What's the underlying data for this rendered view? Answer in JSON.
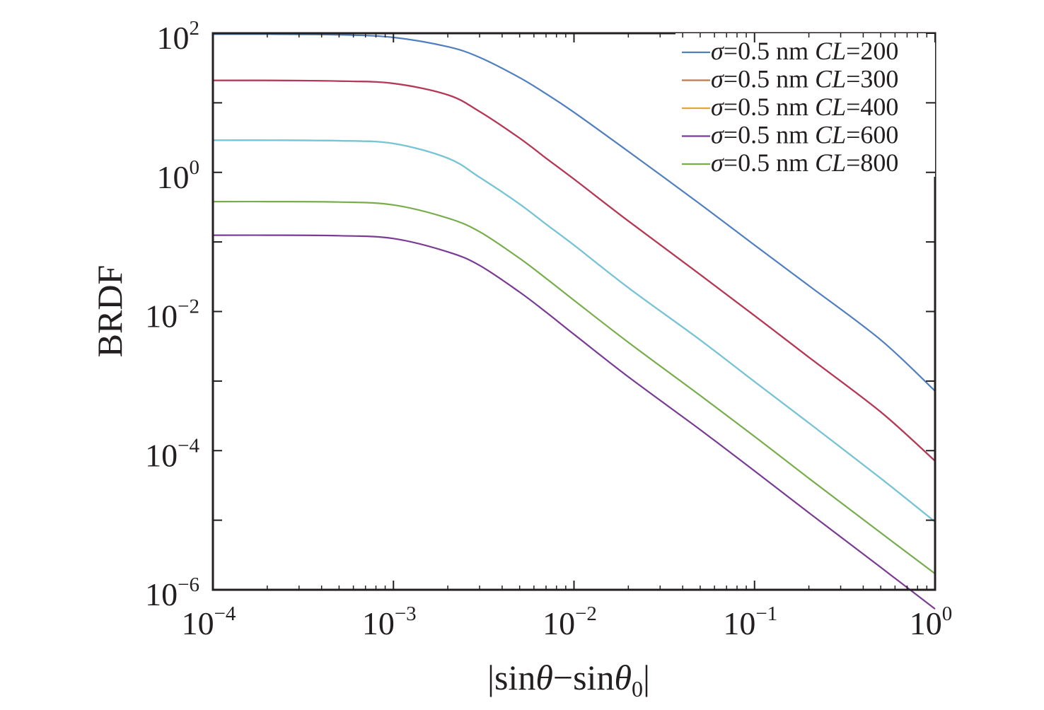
{
  "chart_data": {
    "type": "line",
    "xscale": "log",
    "yscale": "log",
    "xlim": [
      0.0001,
      1
    ],
    "ylim": [
      1e-06,
      100
    ],
    "xlabel": {
      "prefix": "|sin",
      "theta": "θ",
      "mid": "−sin",
      "theta0": "θ",
      "sub": "0",
      "suffix": "|"
    },
    "ylabel": "BRDF",
    "xticks": [
      {
        "value": 0.0001,
        "base": "10",
        "exp": "−4"
      },
      {
        "value": 0.001,
        "base": "10",
        "exp": "−3"
      },
      {
        "value": 0.01,
        "base": "10",
        "exp": "−2"
      },
      {
        "value": 0.1,
        "base": "10",
        "exp": "−1"
      },
      {
        "value": 1,
        "base": "10",
        "exp": "0"
      }
    ],
    "yticks": [
      {
        "value": 100,
        "base": "10",
        "exp": "2"
      },
      {
        "value": 1,
        "base": "10",
        "exp": "0"
      },
      {
        "value": 0.01,
        "base": "10",
        "exp": "−2"
      },
      {
        "value": 0.0001,
        "base": "10",
        "exp": "−4"
      },
      {
        "value": 1e-06,
        "base": "10",
        "exp": "−6"
      }
    ],
    "grid": false,
    "legend_position": "top-right",
    "x": [
      0.0001,
      0.0002,
      0.0005,
      0.001,
      0.002,
      0.003,
      0.005,
      0.007,
      0.01,
      0.02,
      0.05,
      0.1,
      0.2,
      0.5,
      1
    ],
    "series": [
      {
        "name": "σ=0.5 nm CL=200",
        "sigma": "σ",
        "mid": "=0.5 nm ",
        "cl": "CL",
        "val": "=200",
        "color": "#4f7fbf",
        "values": [
          97,
          97,
          95,
          87,
          64,
          45,
          23,
          13.5,
          7.3,
          2.0,
          0.35,
          0.09,
          0.0235,
          0.0039,
          0.00072
        ]
      },
      {
        "name": "σ=0.5 nm CL=300",
        "sigma": "σ",
        "mid": "=0.5 nm ",
        "cl": "CL",
        "val": "=300",
        "color": "#c0784f",
        "values": [
          21,
          21,
          20.5,
          19,
          13,
          7.5,
          3.1,
          1.6,
          0.8,
          0.2,
          0.034,
          0.0087,
          0.0022,
          0.00036,
          7.1e-05
        ]
      },
      {
        "name": "σ=0.5 nm CL=400",
        "sigma": "σ",
        "mid": "=0.5 nm ",
        "cl": "CL",
        "val": "=400",
        "color": "#e0a83a",
        "values": [
          2.9,
          2.9,
          2.85,
          2.6,
          1.6,
          0.85,
          0.35,
          0.18,
          0.09,
          0.022,
          0.0039,
          0.00098,
          0.00025,
          4e-05,
          9.5e-06
        ]
      },
      {
        "name": "σ=0.5 nm CL=600",
        "sigma": "σ",
        "mid": "=0.5 nm ",
        "cl": "CL",
        "val": "=600",
        "color": "#7a3b93",
        "values": [
          0.125,
          0.125,
          0.123,
          0.112,
          0.072,
          0.046,
          0.019,
          0.0098,
          0.0047,
          0.00115,
          0.0002,
          5.1e-05,
          1.28e-05,
          2.1e-06,
          5.3e-07
        ]
      },
      {
        "name": "σ=0.5 nm CL=800",
        "sigma": "σ",
        "mid": "=0.5 nm ",
        "cl": "CL",
        "val": "=800",
        "color": "#78ad4c",
        "values": [
          0.38,
          0.38,
          0.375,
          0.34,
          0.22,
          0.14,
          0.058,
          0.03,
          0.0145,
          0.0036,
          0.00062,
          0.00016,
          4e-05,
          6.6e-06,
          1.7e-06
        ]
      }
    ],
    "extra_curves_unlisted_in_legend": [
      {
        "color": "#b5385a",
        "values": [
          21,
          21,
          20.5,
          19,
          13,
          7.5,
          3.1,
          1.6,
          0.8,
          0.2,
          0.034,
          0.0087,
          0.0022,
          0.00036,
          7.1e-05
        ]
      },
      {
        "color": "#72c6de",
        "values": [
          2.9,
          2.9,
          2.85,
          2.6,
          1.6,
          0.85,
          0.35,
          0.18,
          0.09,
          0.022,
          0.0039,
          0.00098,
          0.00025,
          4e-05,
          9.5e-06
        ]
      }
    ]
  }
}
